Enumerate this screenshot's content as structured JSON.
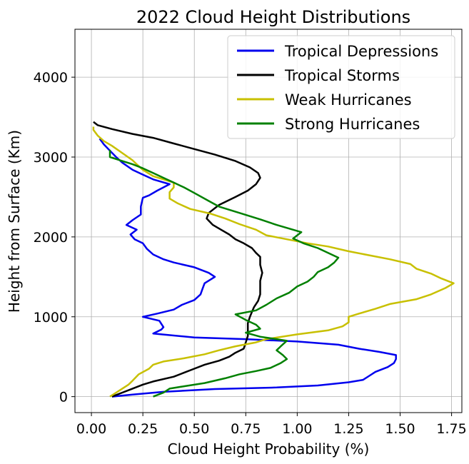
{
  "chart_data": {
    "type": "line",
    "title": "2022 Cloud Height Distributions",
    "xlabel": "Cloud Height Probability (%)",
    "ylabel": "Height from Surface (Km)",
    "xlim": [
      -0.08,
      1.8
    ],
    "ylim": [
      -200,
      4600
    ],
    "x_ticks": [
      0.0,
      0.25,
      0.5,
      0.75,
      1.0,
      1.25,
      1.5,
      1.75
    ],
    "x_tick_labels": [
      "0.00",
      "0.25",
      "0.50",
      "0.75",
      "1.00",
      "1.25",
      "1.50",
      "1.75"
    ],
    "y_ticks": [
      0,
      1000,
      2000,
      3000,
      4000
    ],
    "y_tick_labels": [
      "0",
      "1000",
      "2000",
      "3000",
      "4000"
    ],
    "grid": true,
    "legend_position": "top-right",
    "series": [
      {
        "name": "Tropical Depressions",
        "color": "#0000ee",
        "points": [
          [
            0.1,
            0
          ],
          [
            0.2,
            25
          ],
          [
            0.35,
            60
          ],
          [
            0.6,
            95
          ],
          [
            0.9,
            115
          ],
          [
            1.1,
            140
          ],
          [
            1.25,
            180
          ],
          [
            1.32,
            210
          ],
          [
            1.35,
            260
          ],
          [
            1.38,
            310
          ],
          [
            1.44,
            370
          ],
          [
            1.47,
            420
          ],
          [
            1.48,
            470
          ],
          [
            1.48,
            520
          ],
          [
            1.4,
            560
          ],
          [
            1.3,
            600
          ],
          [
            1.2,
            650
          ],
          [
            1.0,
            690
          ],
          [
            0.75,
            720
          ],
          [
            0.5,
            740
          ],
          [
            0.3,
            790
          ],
          [
            0.34,
            840
          ],
          [
            0.35,
            870
          ],
          [
            0.33,
            950
          ],
          [
            0.25,
            1000
          ],
          [
            0.32,
            1040
          ],
          [
            0.4,
            1090
          ],
          [
            0.44,
            1150
          ],
          [
            0.5,
            1210
          ],
          [
            0.53,
            1280
          ],
          [
            0.54,
            1350
          ],
          [
            0.55,
            1420
          ],
          [
            0.6,
            1500
          ],
          [
            0.57,
            1550
          ],
          [
            0.5,
            1620
          ],
          [
            0.4,
            1680
          ],
          [
            0.35,
            1720
          ],
          [
            0.3,
            1780
          ],
          [
            0.27,
            1850
          ],
          [
            0.25,
            1920
          ],
          [
            0.21,
            1970
          ],
          [
            0.19,
            2030
          ],
          [
            0.22,
            2090
          ],
          [
            0.17,
            2150
          ],
          [
            0.2,
            2210
          ],
          [
            0.24,
            2280
          ],
          [
            0.24,
            2380
          ],
          [
            0.25,
            2490
          ],
          [
            0.28,
            2520
          ],
          [
            0.32,
            2580
          ],
          [
            0.38,
            2660
          ],
          [
            0.3,
            2720
          ],
          [
            0.25,
            2780
          ],
          [
            0.2,
            2840
          ],
          [
            0.15,
            2930
          ],
          [
            0.12,
            3000
          ],
          [
            0.09,
            3080
          ],
          [
            0.06,
            3160
          ],
          [
            0.04,
            3230
          ]
        ]
      },
      {
        "name": "Tropical Storms",
        "color": "#000000",
        "points": [
          [
            0.1,
            0
          ],
          [
            0.15,
            50
          ],
          [
            0.2,
            100
          ],
          [
            0.25,
            150
          ],
          [
            0.3,
            190
          ],
          [
            0.4,
            250
          ],
          [
            0.45,
            300
          ],
          [
            0.5,
            350
          ],
          [
            0.55,
            400
          ],
          [
            0.62,
            450
          ],
          [
            0.67,
            500
          ],
          [
            0.7,
            550
          ],
          [
            0.74,
            600
          ],
          [
            0.75,
            680
          ],
          [
            0.76,
            760
          ],
          [
            0.76,
            840
          ],
          [
            0.76,
            920
          ],
          [
            0.77,
            1000
          ],
          [
            0.78,
            1060
          ],
          [
            0.79,
            1120
          ],
          [
            0.81,
            1200
          ],
          [
            0.82,
            1280
          ],
          [
            0.82,
            1360
          ],
          [
            0.82,
            1450
          ],
          [
            0.83,
            1550
          ],
          [
            0.82,
            1650
          ],
          [
            0.82,
            1750
          ],
          [
            0.8,
            1800
          ],
          [
            0.78,
            1860
          ],
          [
            0.74,
            1920
          ],
          [
            0.7,
            1970
          ],
          [
            0.67,
            2030
          ],
          [
            0.63,
            2090
          ],
          [
            0.59,
            2150
          ],
          [
            0.56,
            2230
          ],
          [
            0.57,
            2300
          ],
          [
            0.62,
            2400
          ],
          [
            0.7,
            2500
          ],
          [
            0.76,
            2580
          ],
          [
            0.8,
            2660
          ],
          [
            0.82,
            2740
          ],
          [
            0.81,
            2800
          ],
          [
            0.77,
            2870
          ],
          [
            0.7,
            2950
          ],
          [
            0.6,
            3030
          ],
          [
            0.5,
            3100
          ],
          [
            0.4,
            3170
          ],
          [
            0.3,
            3240
          ],
          [
            0.2,
            3290
          ],
          [
            0.1,
            3350
          ],
          [
            0.03,
            3400
          ],
          [
            0.01,
            3440
          ]
        ]
      },
      {
        "name": "Weak Hurricanes",
        "color": "#c8c000",
        "points": [
          [
            0.09,
            0
          ],
          [
            0.12,
            50
          ],
          [
            0.15,
            100
          ],
          [
            0.18,
            150
          ],
          [
            0.2,
            200
          ],
          [
            0.23,
            280
          ],
          [
            0.28,
            350
          ],
          [
            0.3,
            400
          ],
          [
            0.35,
            440
          ],
          [
            0.45,
            480
          ],
          [
            0.55,
            530
          ],
          [
            0.62,
            580
          ],
          [
            0.7,
            630
          ],
          [
            0.8,
            680
          ],
          [
            0.85,
            720
          ],
          [
            1.0,
            780
          ],
          [
            1.15,
            830
          ],
          [
            1.22,
            880
          ],
          [
            1.25,
            930
          ],
          [
            1.25,
            1000
          ],
          [
            1.3,
            1040
          ],
          [
            1.38,
            1100
          ],
          [
            1.45,
            1160
          ],
          [
            1.58,
            1220
          ],
          [
            1.65,
            1280
          ],
          [
            1.72,
            1360
          ],
          [
            1.76,
            1420
          ],
          [
            1.7,
            1480
          ],
          [
            1.65,
            1540
          ],
          [
            1.58,
            1600
          ],
          [
            1.55,
            1660
          ],
          [
            1.45,
            1720
          ],
          [
            1.35,
            1770
          ],
          [
            1.25,
            1820
          ],
          [
            1.15,
            1880
          ],
          [
            1.05,
            1920
          ],
          [
            0.95,
            1970
          ],
          [
            0.85,
            2020
          ],
          [
            0.8,
            2090
          ],
          [
            0.72,
            2160
          ],
          [
            0.65,
            2230
          ],
          [
            0.58,
            2290
          ],
          [
            0.48,
            2350
          ],
          [
            0.42,
            2420
          ],
          [
            0.38,
            2480
          ],
          [
            0.38,
            2560
          ],
          [
            0.4,
            2620
          ],
          [
            0.4,
            2680
          ],
          [
            0.35,
            2720
          ],
          [
            0.3,
            2760
          ],
          [
            0.25,
            2840
          ],
          [
            0.22,
            2910
          ],
          [
            0.2,
            2960
          ],
          [
            0.15,
            3050
          ],
          [
            0.1,
            3140
          ],
          [
            0.06,
            3200
          ],
          [
            0.03,
            3270
          ],
          [
            0.01,
            3340
          ],
          [
            0.01,
            3380
          ]
        ]
      },
      {
        "name": "Strong Hurricanes",
        "color": "#008000",
        "points": [
          [
            0.3,
            0
          ],
          [
            0.35,
            50
          ],
          [
            0.38,
            100
          ],
          [
            0.45,
            130
          ],
          [
            0.55,
            170
          ],
          [
            0.65,
            230
          ],
          [
            0.72,
            280
          ],
          [
            0.8,
            320
          ],
          [
            0.87,
            360
          ],
          [
            0.92,
            420
          ],
          [
            0.95,
            470
          ],
          [
            0.93,
            520
          ],
          [
            0.9,
            580
          ],
          [
            0.92,
            630
          ],
          [
            0.95,
            700
          ],
          [
            0.82,
            750
          ],
          [
            0.75,
            800
          ],
          [
            0.82,
            850
          ],
          [
            0.8,
            900
          ],
          [
            0.75,
            960
          ],
          [
            0.7,
            1030
          ],
          [
            0.8,
            1080
          ],
          [
            0.85,
            1150
          ],
          [
            0.9,
            1230
          ],
          [
            0.96,
            1300
          ],
          [
            1.0,
            1380
          ],
          [
            1.05,
            1440
          ],
          [
            1.08,
            1500
          ],
          [
            1.1,
            1560
          ],
          [
            1.15,
            1620
          ],
          [
            1.18,
            1680
          ],
          [
            1.2,
            1740
          ],
          [
            1.15,
            1800
          ],
          [
            1.1,
            1860
          ],
          [
            1.03,
            1920
          ],
          [
            0.98,
            1980
          ],
          [
            1.02,
            2060
          ],
          [
            0.9,
            2150
          ],
          [
            0.82,
            2220
          ],
          [
            0.72,
            2300
          ],
          [
            0.62,
            2380
          ],
          [
            0.57,
            2450
          ],
          [
            0.5,
            2550
          ],
          [
            0.45,
            2620
          ],
          [
            0.4,
            2680
          ],
          [
            0.35,
            2740
          ],
          [
            0.3,
            2800
          ],
          [
            0.25,
            2860
          ],
          [
            0.2,
            2910
          ],
          [
            0.15,
            2950
          ],
          [
            0.09,
            3000
          ],
          [
            0.09,
            3090
          ]
        ]
      }
    ]
  }
}
